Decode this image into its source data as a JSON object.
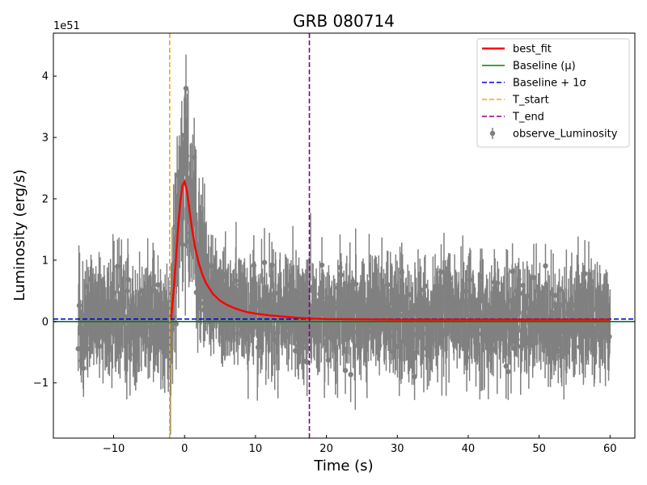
{
  "chart_data": {
    "type": "scatter",
    "title": "GRB 080714",
    "xlabel": "Time (s)",
    "ylabel": "Luminosity (erg/s)",
    "y_offset_label": "1e51",
    "xlim": [
      -18.5,
      63.5
    ],
    "ylim": [
      -1.9,
      4.7
    ],
    "x_ticks": [
      -10,
      0,
      10,
      20,
      30,
      40,
      50,
      60
    ],
    "x_tick_labels": [
      "−10",
      "0",
      "10",
      "20",
      "30",
      "40",
      "50",
      "60"
    ],
    "y_ticks": [
      -1,
      0,
      1,
      2,
      3,
      4
    ],
    "y_tick_labels": [
      "−1",
      "0",
      "1",
      "2",
      "3",
      "4"
    ],
    "grid": false,
    "legend_position": "top-right",
    "legend": [
      {
        "label": "best_fit",
        "kind": "line",
        "color": "#ff0000",
        "dash": "solid"
      },
      {
        "label": "Baseline (μ)",
        "kind": "line",
        "color": "#008000",
        "dash": "solid"
      },
      {
        "label": "Baseline + 1σ",
        "kind": "line",
        "color": "#0000cd",
        "dash": "dashed"
      },
      {
        "label": "T_start",
        "kind": "line",
        "color": "#ffa500",
        "dash": "dashed"
      },
      {
        "label": "T_end",
        "kind": "line",
        "color": "#800080",
        "dash": "dashed"
      },
      {
        "label": "observe_Luminosity",
        "kind": "errorbar",
        "color": "#808080"
      }
    ],
    "baseline_mu": 0.0,
    "baseline_plus_sigma": 0.04,
    "t_start": -2.1,
    "t_end": 17.6,
    "best_fit": {
      "x": [
        -1.9,
        -1.5,
        -1.2,
        -0.9,
        -0.6,
        -0.3,
        0.0,
        0.3,
        0.6,
        1.0,
        1.5,
        2.0,
        2.5,
        3.0,
        4.0,
        5.0,
        6.0,
        7.0,
        8.0,
        9.0,
        10.0,
        12.0,
        14.0,
        16.0,
        17.6,
        20.0,
        30.0,
        40.0,
        50.0,
        60.0
      ],
      "y": [
        0.05,
        0.55,
        1.05,
        1.55,
        1.95,
        2.22,
        2.28,
        2.15,
        1.9,
        1.55,
        1.2,
        0.95,
        0.77,
        0.63,
        0.45,
        0.34,
        0.27,
        0.22,
        0.18,
        0.15,
        0.13,
        0.1,
        0.08,
        0.06,
        0.05,
        0.04,
        0.03,
        0.03,
        0.03,
        0.03
      ]
    },
    "observed": {
      "x_range": [
        -15,
        60
      ],
      "count": 1500,
      "noise_sigma": 0.35,
      "typical_error": 0.45,
      "peak_value": 3.8,
      "peak_time": 0.2
    },
    "colors": {
      "observed": "#808080",
      "best_fit": "#ff0000",
      "baseline": "#008000",
      "baseline_sigma": "#0000cd",
      "t_start": "#ffa500",
      "t_end": "#800080"
    }
  }
}
